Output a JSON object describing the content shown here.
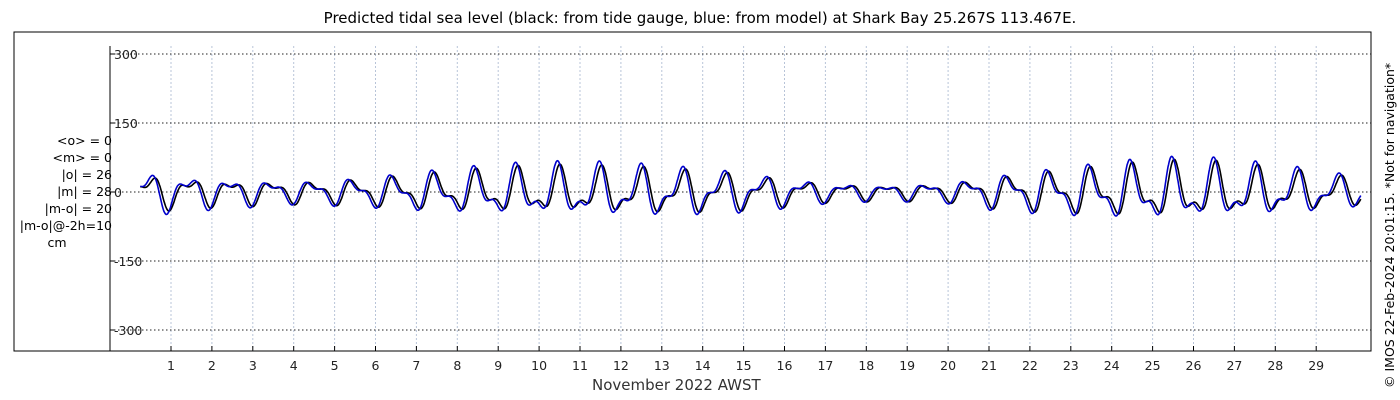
{
  "chart_data": {
    "type": "line",
    "title": "Predicted tidal sea level (black: from tide gauge, blue: from model) at Shark Bay 25.267S 113.467E.",
    "xlabel": "November 2022 AWST",
    "ylabel": "",
    "ylim": [
      -330,
      330
    ],
    "yticks": [
      300,
      150,
      0,
      -150,
      -300
    ],
    "ytick_labels": [
      "300",
      "150",
      "0",
      "-150",
      "-300"
    ],
    "xlim": [
      0.25,
      30.1
    ],
    "xticks": [
      1,
      2,
      3,
      4,
      5,
      6,
      7,
      8,
      9,
      10,
      11,
      12,
      13,
      14,
      15,
      16,
      17,
      18,
      19,
      20,
      21,
      22,
      23,
      24,
      25,
      26,
      27,
      28,
      29
    ],
    "xtick_labels": [
      "1",
      "2",
      "3",
      "4",
      "5",
      "6",
      "7",
      "8",
      "9",
      "10",
      "11",
      "12",
      "13",
      "14",
      "15",
      "16",
      "17",
      "18",
      "19",
      "20",
      "21",
      "22",
      "23",
      "24",
      "25",
      "26",
      "27",
      "28",
      "29"
    ],
    "grid": true,
    "series": [
      {
        "color": "#000000",
        "amplitude_envelope": {
          "day": [
            0.3,
            2,
            4,
            5.5,
            7,
            9,
            10.5,
            11.5,
            13,
            14.5,
            16,
            17,
            18.5,
            20,
            21,
            22.5,
            24,
            25,
            26,
            27,
            28,
            29.5,
            30.1
          ],
          "cm": [
            42,
            32,
            26,
            30,
            40,
            52,
            55,
            54,
            52,
            46,
            33,
            23,
            18,
            22,
            35,
            48,
            58,
            64,
            66,
            60,
            52,
            38,
            30
          ]
        }
      },
      {
        "color": "#0000cc",
        "amplitude_envelope": {
          "day": [
            0.3,
            2,
            4,
            5.5,
            7,
            9,
            10.5,
            11.5,
            13,
            14.5,
            16,
            17,
            18.5,
            20,
            21,
            22.5,
            24,
            25,
            26,
            27,
            28,
            29.5,
            30.1
          ],
          "cm": [
            50,
            36,
            26,
            32,
            44,
            58,
            62,
            62,
            58,
            50,
            35,
            24,
            18,
            24,
            38,
            52,
            64,
            70,
            72,
            66,
            58,
            42,
            32
          ]
        }
      }
    ]
  },
  "stats": {
    "lines": [
      "<o> = 0",
      "<m> = 0",
      "|o| = 26",
      "|m| = 28",
      "|m-o| = 20",
      "|m-o|@-2h=10"
    ],
    "unit": "cm"
  },
  "stamp": "© IMOS 22-Feb-2024 20:01:15. *Not for navigation*",
  "colors": {
    "gauge": "#000000",
    "model": "#0000cc",
    "grid": "#222222",
    "vgrid": "#b8c4d8"
  }
}
